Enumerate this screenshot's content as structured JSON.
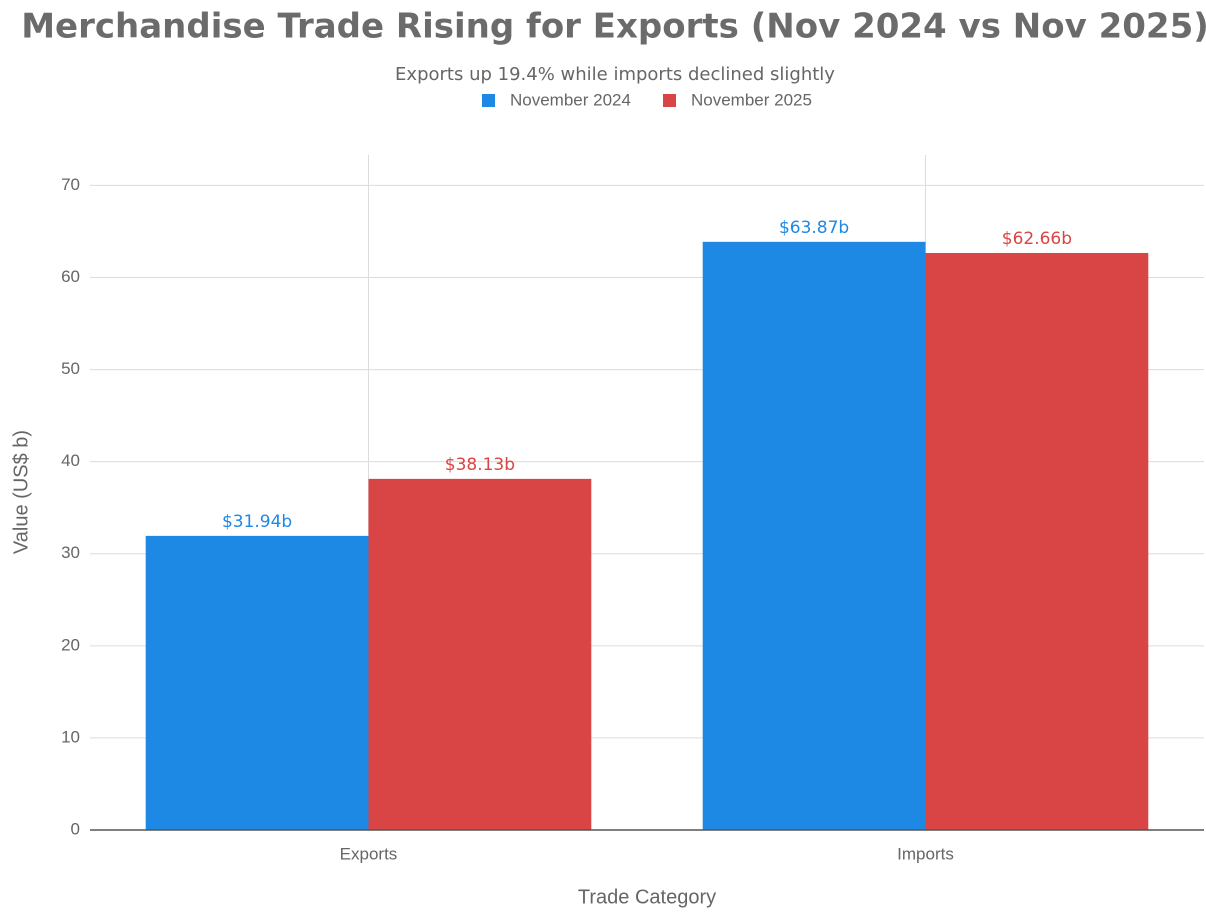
{
  "chart_data": {
    "type": "bar",
    "title": "Merchandise Trade Rising for Exports (Nov 2024 vs Nov 2025)",
    "subtitle": "Exports up 19.4% while imports declined slightly",
    "x_label": "Trade Category",
    "y_label": "Value (US$ b)",
    "categories": [
      "Exports",
      "Imports"
    ],
    "series": [
      {
        "name": "November 2024",
        "color": "#1e88e5",
        "values": [
          31.94,
          63.87
        ],
        "value_labels": [
          "$31.94b",
          "$63.87b"
        ]
      },
      {
        "name": "November 2025",
        "color": "#d94545",
        "values": [
          38.13,
          62.66
        ],
        "value_labels": [
          "$38.13b",
          "$62.66b"
        ]
      }
    ],
    "ylim": [
      0,
      73.3
    ],
    "yticks": [
      0,
      10,
      20,
      30,
      40,
      50,
      60,
      70
    ],
    "grid": true,
    "legend": "top"
  }
}
